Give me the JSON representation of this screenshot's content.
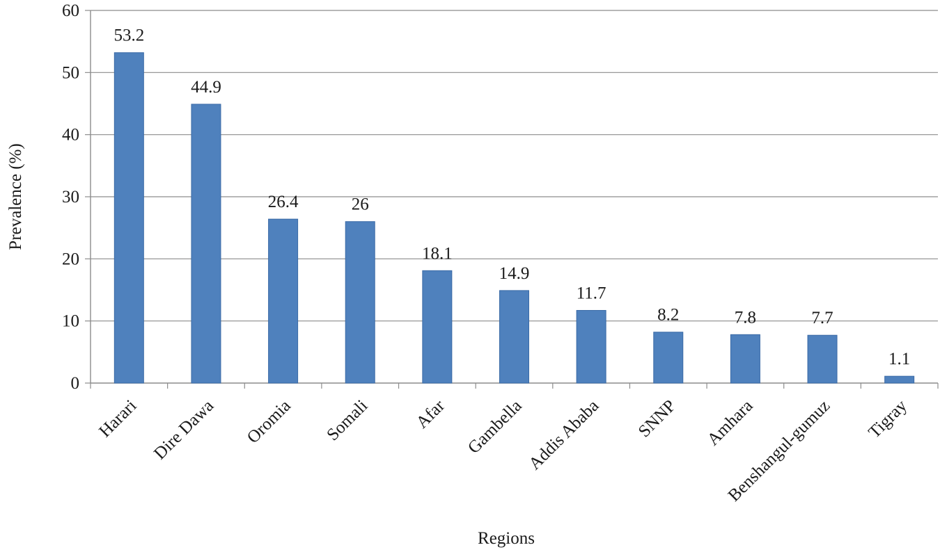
{
  "chart_data": {
    "type": "bar",
    "title": "",
    "xlabel": "Regions",
    "ylabel": "Prevalence (%)",
    "ylim": [
      0,
      60
    ],
    "yticks": [
      "0",
      "10",
      "20",
      "30",
      "40",
      "50",
      "60"
    ],
    "grid": true,
    "legend": "none",
    "categories": [
      "Harari",
      "Dire Dawa",
      "Oromia",
      "Somali",
      "Afar",
      "Gambella",
      "Addis Ababa",
      "SNNP",
      "Amhara",
      "Benshangul-gumuz",
      "Tigray"
    ],
    "values": [
      53.2,
      44.9,
      26.4,
      26,
      18.1,
      14.9,
      11.7,
      8.2,
      7.8,
      7.7,
      1.1
    ],
    "data_labels": [
      "53.2",
      "44.9",
      "26.4",
      "26",
      "18.1",
      "14.9",
      "11.7",
      "8.2",
      "7.8",
      "7.7",
      "1.1"
    ],
    "colors": {
      "bar": "#4f81bd",
      "bar_edge": "#3a6aa6",
      "grid": "#8c8c8c",
      "axis": "#8c8c8c"
    }
  }
}
